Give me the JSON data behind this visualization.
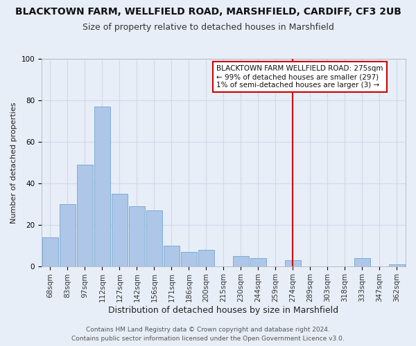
{
  "title": "BLACKTOWN FARM, WELLFIELD ROAD, MARSHFIELD, CARDIFF, CF3 2UB",
  "subtitle": "Size of property relative to detached houses in Marshfield",
  "xlabel": "Distribution of detached houses by size in Marshfield",
  "ylabel": "Number of detached properties",
  "footer_line1": "Contains HM Land Registry data © Crown copyright and database right 2024.",
  "footer_line2": "Contains public sector information licensed under the Open Government Licence v3.0.",
  "bar_labels": [
    "68sqm",
    "83sqm",
    "97sqm",
    "112sqm",
    "127sqm",
    "142sqm",
    "156sqm",
    "171sqm",
    "186sqm",
    "200sqm",
    "215sqm",
    "230sqm",
    "244sqm",
    "259sqm",
    "274sqm",
    "289sqm",
    "303sqm",
    "318sqm",
    "333sqm",
    "347sqm",
    "362sqm"
  ],
  "bar_heights": [
    14,
    30,
    49,
    77,
    35,
    29,
    27,
    10,
    7,
    8,
    0,
    5,
    4,
    0,
    3,
    0,
    0,
    0,
    4,
    0,
    1
  ],
  "bar_color": "#aec6e8",
  "bar_edge_color": "#7aadd4",
  "grid_color": "#d0d8e8",
  "background_color": "#e8eef8",
  "vline_x_index": 14,
  "vline_color": "#cc0000",
  "annotation_box_text": "BLACKTOWN FARM WELLFIELD ROAD: 275sqm\n← 99% of detached houses are smaller (297)\n1% of semi-detached houses are larger (3) →",
  "ylim": [
    0,
    100
  ],
  "title_fontsize": 10,
  "subtitle_fontsize": 9,
  "xlabel_fontsize": 9,
  "ylabel_fontsize": 8,
  "tick_fontsize": 7.5,
  "annotation_fontsize": 7.5,
  "footer_fontsize": 6.5
}
